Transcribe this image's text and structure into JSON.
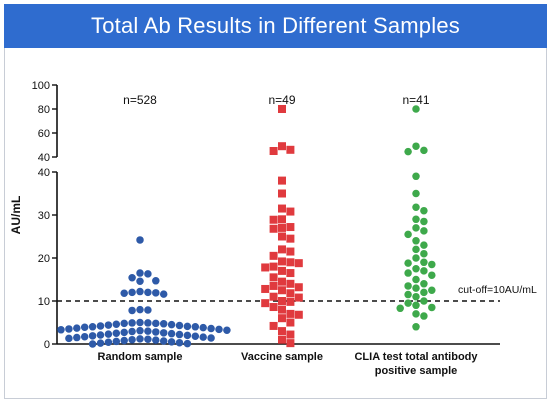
{
  "chart_data": {
    "type": "scatter",
    "title": "Total Ab Results in Different Samples",
    "ylabel": "AU/mL",
    "axis_break": {
      "lower_range": [
        0,
        40
      ],
      "upper_range": [
        40,
        100
      ]
    },
    "y_ticks_lower": [
      "0",
      "10",
      "20",
      "30",
      "40"
    ],
    "y_ticks_upper": [
      "40",
      "60",
      "80",
      "100"
    ],
    "cutoff": {
      "value": 10,
      "label": "cut-off=10AU/mL"
    },
    "categories": [
      "Random sample",
      "Vaccine sample",
      "CLIA test total antibody positive sample"
    ],
    "category_lines": [
      [
        "Random sample"
      ],
      [
        "Vaccine sample"
      ],
      [
        "CLIA test total antibody",
        "positive sample"
      ]
    ],
    "grid": false,
    "series": [
      {
        "category": "Random sample",
        "count_label": "n=528",
        "color": "#2e5aa8",
        "marker": "circle",
        "values": [
          24.2,
          16.5,
          16.3,
          15.4,
          14.7,
          14.6,
          12.2,
          12.0,
          12.0,
          11.8,
          11.9,
          11.6,
          8.0,
          7.9,
          7.8,
          5.0,
          4.9,
          4.9,
          4.8,
          4.8,
          4.7,
          4.6,
          4.5,
          4.4,
          4.3,
          4.2,
          4.1,
          4.0,
          4.0,
          3.9,
          3.8,
          3.7,
          3.6,
          3.5,
          3.4,
          3.3,
          3.2,
          3.1,
          3.0,
          2.9,
          2.8,
          2.7,
          2.6,
          2.5,
          2.4,
          2.3,
          2.2,
          2.1,
          2.0,
          1.9,
          1.8,
          1.7,
          1.6,
          1.5,
          1.4,
          1.3,
          1.2,
          1.1,
          1.0,
          0.9,
          0.8,
          0.7,
          0.6,
          0.5,
          0.4,
          0.3,
          0.2,
          0.1,
          0.0
        ]
      },
      {
        "category": "Vaccine sample",
        "count_label": "n=49",
        "color": "#e03a3e",
        "marker": "square",
        "values": [
          80.0,
          49.0,
          46.0,
          45.0,
          38.0,
          35.0,
          31.5,
          30.8,
          29.0,
          28.9,
          27.2,
          27.0,
          26.8,
          24.5,
          22.0,
          21.5,
          19.0,
          18.8,
          18.0,
          17.8,
          16.5,
          15.5,
          14.0,
          13.5,
          13.2,
          12.8,
          12.5,
          11.0,
          10.8,
          10.0,
          9.8,
          9.5,
          8.6,
          7.0,
          6.8,
          6.0,
          5.0,
          4.2,
          3.0,
          2.2,
          1.0,
          0.2,
          19.2,
          25.0,
          17.0,
          8.0,
          11.8,
          20.5,
          14.5
        ]
      },
      {
        "category": "CLIA test total antibody positive sample",
        "count_label": "n=41",
        "color": "#3ea94b",
        "marker": "circle",
        "values": [
          80.0,
          49.0,
          45.5,
          44.5,
          39.0,
          35.0,
          31.8,
          31.0,
          29.0,
          28.5,
          27.0,
          26.3,
          24.0,
          22.0,
          21.0,
          19.0,
          18.8,
          18.5,
          17.5,
          16.5,
          16.0,
          14.0,
          13.0,
          12.5,
          12.0,
          11.5,
          11.0,
          10.0,
          9.5,
          8.5,
          8.3,
          7.0,
          6.5,
          4.0,
          23.0,
          20.0,
          15.0,
          13.5,
          9.0,
          17.0,
          25.5
        ]
      }
    ]
  }
}
